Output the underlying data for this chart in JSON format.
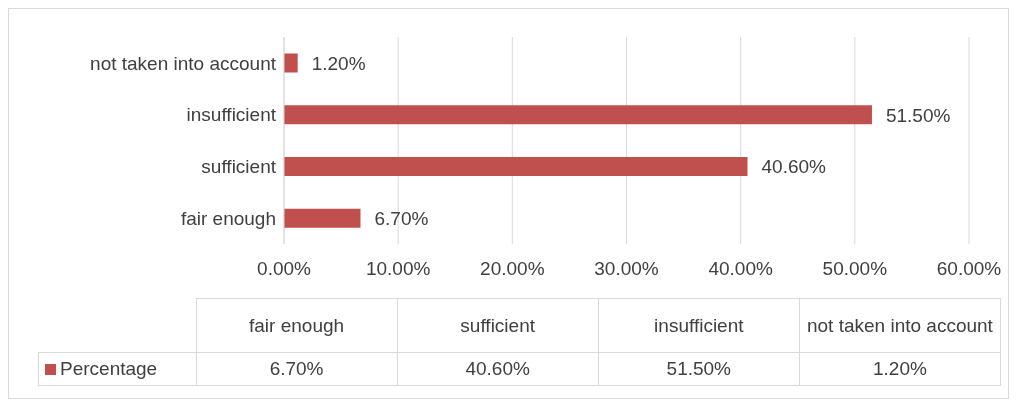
{
  "chart_data": {
    "type": "bar",
    "orientation": "horizontal",
    "categories": [
      "not taken into account",
      "insufficient",
      "sufficient",
      "fair enough"
    ],
    "series": [
      {
        "name": "Percentage",
        "color": "#c0504d",
        "values": [
          1.2,
          51.5,
          40.6,
          6.7
        ],
        "value_labels": [
          "1.20%",
          "51.50%",
          "40.60%",
          "6.70%"
        ]
      }
    ],
    "xlim": [
      0,
      60
    ],
    "xticks": [
      {
        "value": 0,
        "label": "0.00%"
      },
      {
        "value": 10,
        "label": "10.00%"
      },
      {
        "value": 20,
        "label": "20.00%"
      },
      {
        "value": 30,
        "label": "30.00%"
      },
      {
        "value": 40,
        "label": "40.00%"
      },
      {
        "value": 50,
        "label": "50.00%"
      },
      {
        "value": 60,
        "label": "60.00%"
      }
    ],
    "grid": "x",
    "legend": "bottom"
  }
}
